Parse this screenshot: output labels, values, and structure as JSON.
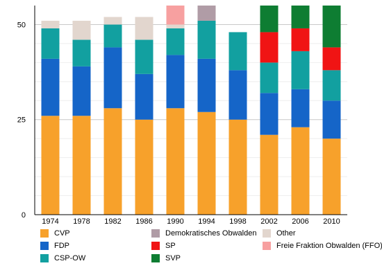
{
  "chart_data": {
    "type": "bar",
    "stacked": true,
    "categories": [
      "1974",
      "1978",
      "1982",
      "1986",
      "1990",
      "1994",
      "1998",
      "2002",
      "2006",
      "2010"
    ],
    "series": [
      {
        "name": "CVP",
        "color": "#f7a12b",
        "values": [
          26,
          26,
          28,
          25,
          28,
          27,
          25,
          21,
          23,
          20
        ]
      },
      {
        "name": "FDP",
        "color": "#1565c8",
        "values": [
          15,
          13,
          16,
          12,
          14,
          14,
          13,
          11,
          10,
          10
        ]
      },
      {
        "name": "CSP-OW",
        "color": "#12a0a0",
        "values": [
          8,
          7,
          6,
          9,
          7,
          10,
          10,
          8,
          10,
          8
        ]
      },
      {
        "name": "Demokratisches Obwalden",
        "color": "#b09ca6",
        "values": [
          0,
          0,
          0,
          0,
          0,
          4,
          0,
          0,
          0,
          0
        ]
      },
      {
        "name": "SP",
        "color": "#f01414",
        "values": [
          0,
          0,
          0,
          0,
          0,
          0,
          0,
          8,
          6,
          6
        ]
      },
      {
        "name": "SVP",
        "color": "#0e7d32",
        "values": [
          0,
          0,
          0,
          0,
          0,
          0,
          0,
          7,
          6,
          11
        ]
      },
      {
        "name": "Other",
        "color": "#e2d6ce",
        "values": [
          2,
          5,
          2,
          6,
          1,
          0,
          0,
          0,
          0,
          0
        ]
      },
      {
        "name": "Freie Fraktion Obwalden (FFO)",
        "color": "#f7a0a0",
        "values": [
          0,
          0,
          0,
          0,
          5,
          0,
          0,
          0,
          0,
          0
        ]
      }
    ],
    "ylim": [
      0,
      55
    ],
    "yticks": [
      "0",
      "25",
      "50"
    ],
    "ytick_values": [
      0,
      25,
      50
    ],
    "minor_gridlines": [
      5,
      10,
      15,
      20,
      30,
      35,
      40,
      45
    ],
    "legend_position": "bottom",
    "legend_columns": [
      [
        "CVP",
        "FDP",
        "CSP-OW"
      ],
      [
        "Demokratisches Obwalden",
        "SP",
        "SVP"
      ],
      [
        "Other",
        "Freie Fraktion Obwalden (FFO)"
      ]
    ],
    "xlabel": "",
    "ylabel": "",
    "title": ""
  }
}
